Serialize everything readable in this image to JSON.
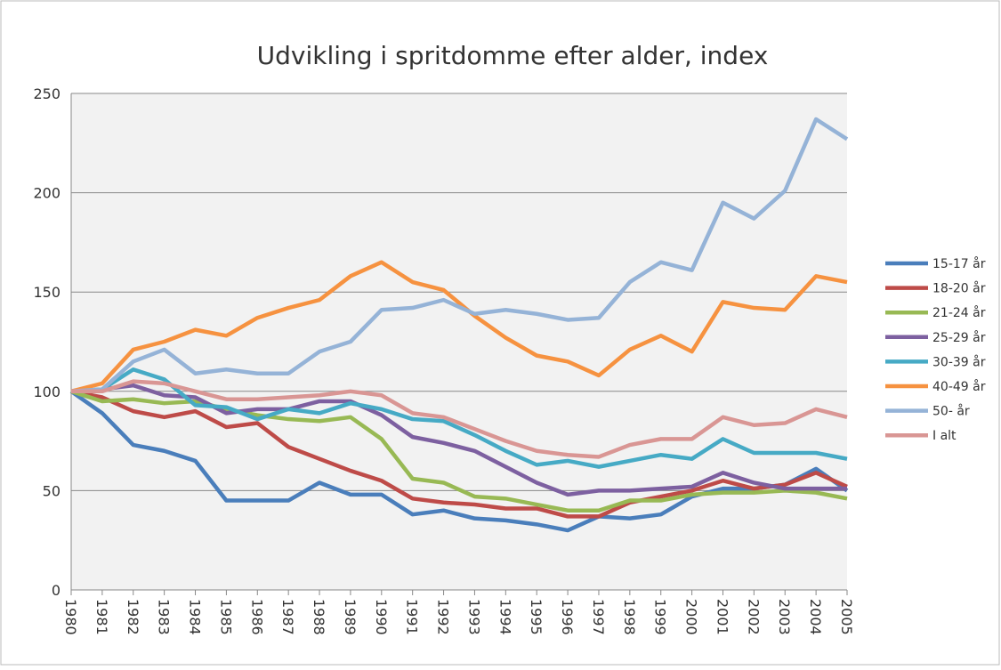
{
  "chart_data": {
    "type": "line",
    "title": "Udvikling i spritdomme efter alder, index",
    "categories": [
      "1980",
      "1981",
      "1982",
      "1983",
      "1984",
      "1985",
      "1986",
      "1987",
      "1988",
      "1989",
      "1990",
      "1991",
      "1992",
      "1993",
      "1994",
      "1995",
      "1996",
      "1997",
      "1998",
      "1999",
      "2000",
      "2001",
      "2002",
      "2003",
      "2004",
      "2005"
    ],
    "series": [
      {
        "name": "15-17 år",
        "color": "#4a7ebb",
        "values": [
          100,
          89,
          73,
          70,
          65,
          45,
          45,
          45,
          54,
          48,
          48,
          38,
          40,
          36,
          35,
          33,
          30,
          37,
          36,
          38,
          47,
          51,
          51,
          53,
          61,
          50
        ]
      },
      {
        "name": "18-20 år",
        "color": "#be4b48",
        "values": [
          100,
          97,
          90,
          87,
          90,
          82,
          84,
          72,
          66,
          60,
          55,
          46,
          44,
          43,
          41,
          41,
          37,
          37,
          44,
          47,
          50,
          55,
          51,
          53,
          59,
          52
        ]
      },
      {
        "name": "21-24 år",
        "color": "#98b954",
        "values": [
          100,
          95,
          96,
          94,
          95,
          91,
          88,
          86,
          85,
          87,
          76,
          56,
          54,
          47,
          46,
          43,
          40,
          40,
          45,
          45,
          48,
          49,
          49,
          50,
          49,
          46
        ]
      },
      {
        "name": "25-29 år",
        "color": "#7d60a0",
        "values": [
          100,
          101,
          103,
          98,
          97,
          89,
          91,
          91,
          95,
          95,
          88,
          77,
          74,
          70,
          62,
          54,
          48,
          50,
          50,
          51,
          52,
          59,
          54,
          51,
          51,
          51
        ]
      },
      {
        "name": "30-39 år",
        "color": "#46aac5",
        "values": [
          100,
          101,
          111,
          106,
          93,
          92,
          86,
          91,
          89,
          94,
          91,
          86,
          85,
          78,
          70,
          63,
          65,
          62,
          65,
          68,
          66,
          76,
          69,
          69,
          69,
          66
        ]
      },
      {
        "name": "40-49 år",
        "color": "#f69240",
        "values": [
          100,
          104,
          121,
          125,
          131,
          128,
          137,
          142,
          146,
          158,
          165,
          155,
          151,
          138,
          127,
          118,
          115,
          108,
          121,
          128,
          120,
          145,
          142,
          141,
          158,
          155
        ]
      },
      {
        "name": "50- år",
        "color": "#95b3d7",
        "values": [
          100,
          101,
          115,
          121,
          109,
          111,
          109,
          109,
          120,
          125,
          141,
          142,
          146,
          139,
          141,
          139,
          136,
          137,
          155,
          165,
          161,
          195,
          187,
          201,
          237,
          227
        ]
      },
      {
        "name": "I alt",
        "color": "#d99694",
        "values": [
          100,
          100,
          105,
          104,
          100,
          96,
          96,
          97,
          98,
          100,
          98,
          89,
          87,
          81,
          75,
          70,
          68,
          67,
          73,
          76,
          76,
          87,
          83,
          84,
          91,
          87
        ]
      }
    ],
    "ylim": [
      0,
      250
    ],
    "yticks": [
      0,
      50,
      100,
      150,
      200,
      250
    ],
    "grid": true,
    "legend": "right"
  }
}
